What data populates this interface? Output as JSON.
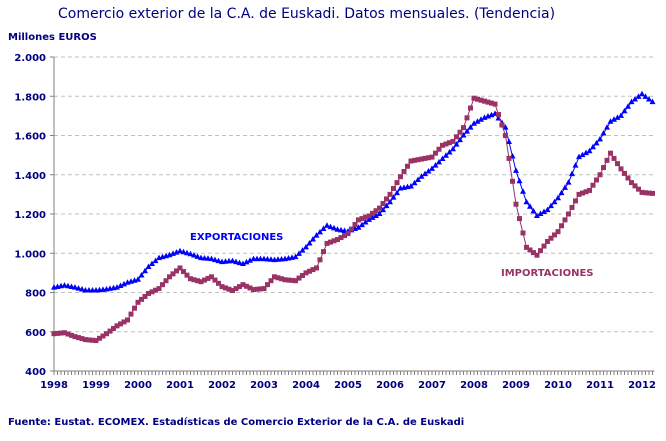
{
  "chart_data": {
    "type": "line",
    "title": "Comercio exterior de la C.A. de Euskadi. Datos mensuales. (Tendencia)",
    "ylabel": "Millones EUROS",
    "source": "Fuente: Eustat. ECOMEX. Estadísticas de Comercio Exterior de la C.A. de Euskadi",
    "ylim": [
      400,
      2000
    ],
    "yticks": [
      "400",
      "600",
      "800",
      "1.000",
      "1.200",
      "1.400",
      "1.600",
      "1.800",
      "2.000"
    ],
    "ytick_values": [
      400,
      600,
      800,
      1000,
      1200,
      1400,
      1600,
      1800,
      2000
    ],
    "xticks": [
      "1998",
      "1999",
      "2000",
      "2001",
      "2002",
      "2003",
      "2004",
      "2005",
      "2006",
      "2007",
      "2008",
      "2009",
      "2010",
      "2011",
      "2012"
    ],
    "xlim": [
      1998,
      2012.25
    ],
    "grid": true,
    "x": [
      1998.0,
      1998.25,
      1998.5,
      1998.75,
      1999.0,
      1999.25,
      1999.5,
      1999.75,
      2000.0,
      2000.25,
      2000.5,
      2000.75,
      2001.0,
      2001.25,
      2001.5,
      2001.75,
      2002.0,
      2002.25,
      2002.5,
      2002.75,
      2003.0,
      2003.25,
      2003.5,
      2003.75,
      2004.0,
      2004.25,
      2004.5,
      2004.75,
      2005.0,
      2005.25,
      2005.5,
      2005.75,
      2006.0,
      2006.25,
      2006.5,
      2006.75,
      2007.0,
      2007.25,
      2007.5,
      2007.75,
      2008.0,
      2008.25,
      2008.5,
      2008.75,
      2009.0,
      2009.25,
      2009.5,
      2009.75,
      2010.0,
      2010.25,
      2010.5,
      2010.75,
      2011.0,
      2011.25,
      2011.5,
      2011.75,
      2012.0,
      2012.25
    ],
    "series": [
      {
        "name": "EXPORTACIONES",
        "color": "#0000FF",
        "marker": "triangle",
        "values": [
          825,
          835,
          825,
          810,
          810,
          815,
          825,
          850,
          865,
          930,
          975,
          990,
          1010,
          995,
          975,
          970,
          955,
          960,
          945,
          970,
          970,
          965,
          970,
          980,
          1030,
          1090,
          1140,
          1120,
          1110,
          1130,
          1170,
          1200,
          1260,
          1330,
          1340,
          1390,
          1430,
          1480,
          1530,
          1600,
          1660,
          1690,
          1710,
          1640,
          1420,
          1260,
          1190,
          1220,
          1280,
          1360,
          1490,
          1520,
          1580,
          1670,
          1700,
          1770,
          1810,
          1770
        ]
      },
      {
        "name": "IMPORTACIONES",
        "color": "#993366",
        "marker": "square",
        "values": [
          590,
          595,
          575,
          560,
          555,
          590,
          630,
          660,
          750,
          795,
          820,
          880,
          925,
          870,
          855,
          880,
          830,
          810,
          840,
          815,
          820,
          880,
          865,
          860,
          900,
          925,
          1050,
          1070,
          1100,
          1170,
          1190,
          1230,
          1300,
          1390,
          1470,
          1480,
          1490,
          1550,
          1570,
          1640,
          1790,
          1775,
          1760,
          1600,
          1250,
          1030,
          990,
          1060,
          1110,
          1200,
          1300,
          1320,
          1400,
          1510,
          1430,
          1360,
          1310,
          1305
        ]
      }
    ]
  }
}
